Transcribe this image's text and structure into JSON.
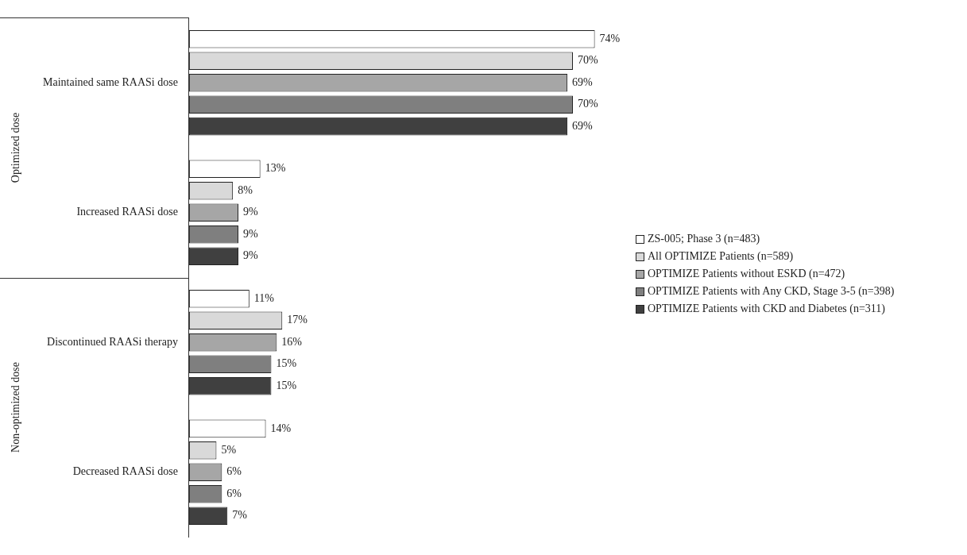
{
  "chart_data": {
    "type": "bar",
    "orientation": "horizontal",
    "categories": [
      "Maintained same RAASi dose",
      "Increased RAASi dose",
      "Discontinued RAASi therapy",
      "Decreased RAASi dose"
    ],
    "series": [
      {
        "name": "ZS-005; Phase 3 (n=483)",
        "color": "#ffffff",
        "values": [
          74,
          13,
          11,
          14
        ],
        "value_labels": [
          "74%",
          "13%",
          "11%",
          "14%"
        ]
      },
      {
        "name": "All OPTIMIZE Patients (n=589)",
        "color": "#d9d9d9",
        "values": [
          70,
          8,
          17,
          5
        ],
        "value_labels": [
          "70%",
          "8%",
          "17%",
          "5%"
        ]
      },
      {
        "name": "OPTIMIZE Patients without ESKD (n=472)",
        "color": "#a6a6a6",
        "values": [
          69,
          9,
          16,
          6
        ],
        "value_labels": [
          "69%",
          "9%",
          "16%",
          "6%"
        ]
      },
      {
        "name": "OPTIMIZE Patients with Any CKD, Stage 3-5 (n=398)",
        "color": "#7f7f7f",
        "values": [
          70,
          9,
          15,
          6
        ],
        "value_labels": [
          "70%",
          "9%",
          "15%",
          "6%"
        ]
      },
      {
        "name": "OPTIMIZE Patients with CKD and Diabetes (n=311)",
        "color": "#404040",
        "values": [
          69,
          9,
          15,
          7
        ],
        "value_labels": [
          "69%",
          "9%",
          "15%",
          "7%"
        ]
      }
    ],
    "annotations": [
      "Optimized dose",
      "Non-optimized dose"
    ],
    "legend": "right",
    "tick_labels": "y"
  }
}
